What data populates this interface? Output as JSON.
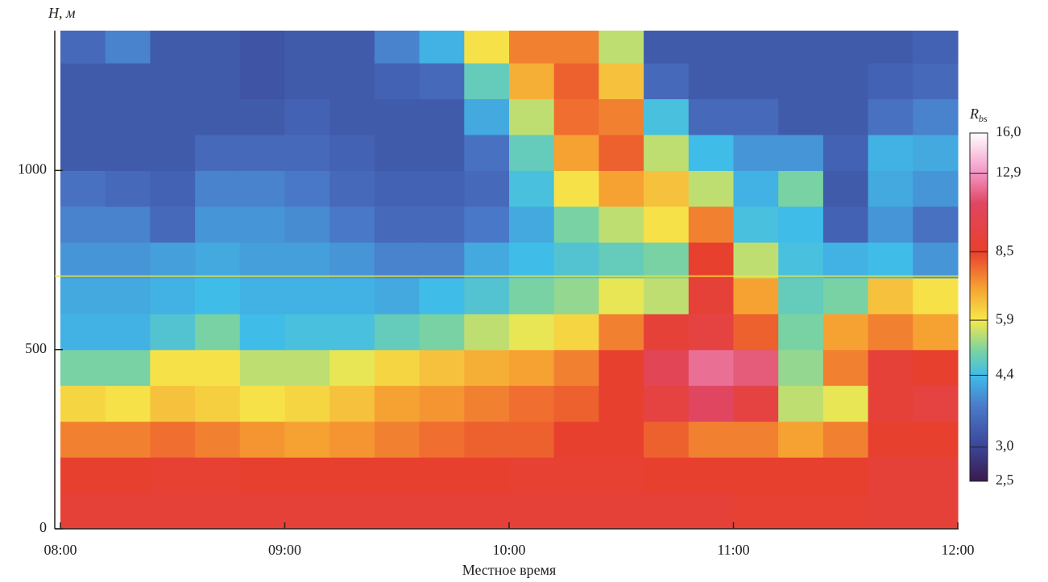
{
  "chart_data": {
    "type": "heatmap",
    "y_label": "H, м",
    "x_label": "Местное время",
    "xlim": [
      8,
      12
    ],
    "xticks": [
      {
        "value": 8,
        "label": "08:00"
      },
      {
        "value": 9,
        "label": "09:00"
      },
      {
        "value": 10,
        "label": "10:00"
      },
      {
        "value": 11,
        "label": "11:00"
      },
      {
        "value": 12,
        "label": "12:00"
      }
    ],
    "ylim": [
      0,
      1390
    ],
    "yticks": [
      0,
      500,
      1000
    ],
    "x": [
      8.1,
      8.3,
      8.5,
      8.7,
      8.9,
      9.1,
      9.3,
      9.5,
      9.7,
      9.9,
      10.1,
      10.3,
      10.5,
      10.7,
      10.9,
      11.1,
      11.3,
      11.5,
      11.7,
      11.9
    ],
    "y": [
      50,
      150,
      250,
      350,
      450,
      550,
      650,
      750,
      850,
      950,
      1050,
      1150,
      1250,
      1350
    ],
    "values": [
      [
        9,
        8.5,
        7.5,
        6.2,
        5.0,
        4.3,
        4.2,
        4.0,
        3.8,
        3.6,
        3.3,
        3.3,
        3.3,
        3.5
      ],
      [
        9,
        8.5,
        7.5,
        6.0,
        5.0,
        4.3,
        4.2,
        4.0,
        3.8,
        3.5,
        3.3,
        3.3,
        3.3,
        3.8
      ],
      [
        9,
        8.8,
        7.8,
        6.5,
        6.0,
        4.6,
        4.3,
        4.1,
        3.5,
        3.4,
        3.3,
        3.3,
        3.3,
        3.3
      ],
      [
        9,
        8.8,
        7.5,
        6.3,
        6.0,
        5.0,
        4.4,
        4.2,
        4.0,
        3.8,
        3.5,
        3.3,
        3.3,
        3.3
      ],
      [
        9,
        8.5,
        7.2,
        6.0,
        5.5,
        4.4,
        4.3,
        4.1,
        4.0,
        3.8,
        3.5,
        3.3,
        3.2,
        3.2
      ],
      [
        9,
        8.5,
        7.0,
        6.2,
        5.5,
        4.5,
        4.3,
        4.1,
        3.9,
        3.7,
        3.5,
        3.4,
        3.3,
        3.3
      ],
      [
        9,
        8.5,
        7.2,
        6.5,
        5.8,
        4.5,
        4.3,
        4.0,
        3.7,
        3.5,
        3.4,
        3.3,
        3.3,
        3.3
      ],
      [
        9,
        8.5,
        7.5,
        7.0,
        6.2,
        4.8,
        4.2,
        3.8,
        3.5,
        3.4,
        3.3,
        3.3,
        3.4,
        3.8
      ],
      [
        9,
        8.5,
        7.8,
        7.2,
        6.5,
        5.0,
        4.4,
        3.8,
        3.5,
        3.4,
        3.3,
        3.3,
        3.5,
        4.3
      ],
      [
        9,
        8.5,
        8.0,
        7.5,
        6.8,
        5.5,
        4.6,
        4.2,
        3.7,
        3.5,
        3.6,
        4.2,
        4.8,
        6.0
      ],
      [
        9,
        8.8,
        8.0,
        7.8,
        7.0,
        5.8,
        5.0,
        4.4,
        4.2,
        4.5,
        4.8,
        5.5,
        6.8,
        7.5
      ],
      [
        9,
        8.8,
        8.5,
        8.0,
        7.5,
        6.2,
        5.2,
        4.6,
        5.0,
        6.0,
        7.0,
        7.8,
        8.0,
        7.5
      ],
      [
        9,
        8.8,
        8.5,
        8.5,
        8.5,
        7.5,
        5.8,
        4.8,
        5.5,
        7.0,
        8.0,
        7.5,
        6.5,
        5.5
      ],
      [
        9,
        8.5,
        8.0,
        9.5,
        10.5,
        9.0,
        5.5,
        5.0,
        6.0,
        6.5,
        5.5,
        4.5,
        3.5,
        3.3
      ],
      [
        9,
        8.5,
        7.5,
        11.0,
        12.0,
        9.5,
        9.0,
        8.5,
        7.5,
        5.5,
        4.4,
        3.5,
        3.3,
        3.3
      ],
      [
        8.8,
        8.5,
        7.5,
        9.5,
        11.5,
        8.0,
        7.0,
        5.5,
        4.5,
        4.3,
        4.0,
        3.5,
        3.3,
        3.3
      ],
      [
        8.8,
        8.5,
        7.0,
        5.5,
        5.2,
        5.0,
        4.8,
        4.5,
        4.4,
        5.0,
        4.0,
        3.3,
        3.3,
        3.3
      ],
      [
        8.8,
        8.5,
        7.5,
        5.8,
        7.5,
        7.0,
        5.0,
        4.3,
        3.4,
        3.3,
        3.4,
        3.3,
        3.3,
        3.3
      ],
      [
        9,
        9.0,
        8.5,
        9.0,
        9.0,
        7.5,
        6.5,
        4.4,
        4.0,
        4.2,
        4.3,
        3.6,
        3.4,
        3.3
      ],
      [
        9,
        9.0,
        8.5,
        9.5,
        8.5,
        7.0,
        6.0,
        4.0,
        3.6,
        4.0,
        4.2,
        3.8,
        3.5,
        3.4
      ]
    ],
    "hline": {
      "value": 705,
      "color": "#f2e63a"
    },
    "colorbar": {
      "label": "R",
      "label_sub": "bs",
      "log": true,
      "ticks": [
        {
          "value": 2.5,
          "label": "2,5"
        },
        {
          "value": 3.0,
          "label": "3,0"
        },
        {
          "value": 4.4,
          "label": "4,4"
        },
        {
          "value": 5.9,
          "label": "5,9"
        },
        {
          "value": 8.5,
          "label": "8,5"
        },
        {
          "value": 12.9,
          "label": "12,9"
        },
        {
          "value": 16.0,
          "label": "16,0"
        }
      ]
    },
    "colorscale": [
      {
        "value": 2.5,
        "color": "#3a1a4c"
      },
      {
        "value": 3.0,
        "color": "#3b4596"
      },
      {
        "value": 3.7,
        "color": "#4a78c8"
      },
      {
        "value": 4.4,
        "color": "#40bce8"
      },
      {
        "value": 5.0,
        "color": "#78d2a4"
      },
      {
        "value": 5.9,
        "color": "#f6e84a"
      },
      {
        "value": 7.0,
        "color": "#f6a232"
      },
      {
        "value": 8.5,
        "color": "#e8402e"
      },
      {
        "value": 11.0,
        "color": "#e04660"
      },
      {
        "value": 12.9,
        "color": "#f294c4"
      },
      {
        "value": 16.0,
        "color": "#ffffff"
      }
    ]
  }
}
